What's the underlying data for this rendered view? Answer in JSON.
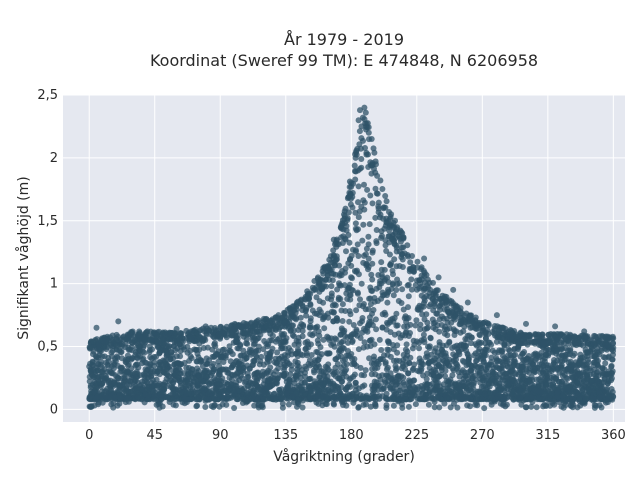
{
  "chart_data": {
    "type": "scatter",
    "title_line1": "År 1979 - 2019",
    "title_line2": "Koordinat (Sweref 99 TM): E 474848, N 6206958",
    "xlabel": "Vågriktning (grader)",
    "ylabel": "Signifikant våghöjd (m)",
    "xlim": [
      -18,
      368
    ],
    "ylim": [
      -0.1,
      2.5
    ],
    "xticks": [
      0,
      45,
      90,
      135,
      180,
      225,
      270,
      315,
      360
    ],
    "xtick_labels": [
      "0",
      "45",
      "90",
      "135",
      "180",
      "225",
      "270",
      "315",
      "360"
    ],
    "yticks": [
      0,
      0.5,
      1,
      1.5,
      2,
      2.5
    ],
    "ytick_labels": [
      "0",
      "0,5",
      "1",
      "1,5",
      "2",
      "2,5"
    ],
    "grid": true,
    "marker_color": "#2f5368",
    "background_color": "#e5e8f0",
    "upper_envelope": {
      "direction_deg": [
        0,
        30,
        60,
        90,
        120,
        135,
        150,
        165,
        175,
        180,
        185,
        190,
        195,
        200,
        205,
        210,
        220,
        230,
        240,
        250,
        270,
        300,
        330,
        360
      ],
      "height_m": [
        0.55,
        0.62,
        0.62,
        0.66,
        0.72,
        0.78,
        0.95,
        1.2,
        1.55,
        1.9,
        2.2,
        2.35,
        2.1,
        1.8,
        1.65,
        1.5,
        1.3,
        1.1,
        0.95,
        0.85,
        0.7,
        0.6,
        0.6,
        0.58
      ]
    },
    "lower_bound_m": 0.08,
    "sample_points": {
      "direction_deg": [
        186,
        188,
        190,
        192,
        194,
        187,
        183,
        197,
        200,
        180,
        202,
        175,
        210,
        215,
        168,
        230,
        240,
        250,
        260,
        140,
        130,
        120,
        100,
        80,
        60,
        40,
        20,
        5,
        280,
        300,
        320,
        340,
        355,
        185,
        189
      ],
      "height_m": [
        2.38,
        2.32,
        2.36,
        2.2,
        2.15,
        2.25,
        2.0,
        1.95,
        1.82,
        1.8,
        1.6,
        1.55,
        1.5,
        1.4,
        1.35,
        1.2,
        1.05,
        0.95,
        0.85,
        0.82,
        0.75,
        0.72,
        0.68,
        0.66,
        0.64,
        0.62,
        0.7,
        0.65,
        0.75,
        0.68,
        0.66,
        0.62,
        0.58,
        2.3,
        2.4
      ]
    }
  }
}
